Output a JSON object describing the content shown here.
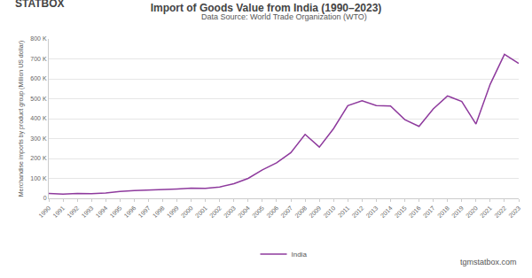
{
  "chart_data": {
    "type": "line",
    "title": "Import of Goods Value from India (1990–2023)",
    "subtitle": "Data Source: World Trade Organization (WTO)",
    "y_label": "Merchandise imports by product group (Million US dollar)",
    "annotations": [
      "STATBOX",
      "tgmstatbox.com"
    ],
    "categories": [
      "1990",
      "1991",
      "1992",
      "1993",
      "1994",
      "1995",
      "1996",
      "1997",
      "1998",
      "1999",
      "2000",
      "2001",
      "2002",
      "2003",
      "2004",
      "2005",
      "2006",
      "2007",
      "2008",
      "2009",
      "2010",
      "2011",
      "2012",
      "2013",
      "2014",
      "2015",
      "2016",
      "2017",
      "2018",
      "2019",
      "2020",
      "2021",
      "2022",
      "2023"
    ],
    "series": [
      {
        "name": "India",
        "color": "#8e3a9d",
        "values": [
          24000,
          21000,
          24000,
          23000,
          27000,
          35000,
          39000,
          41000,
          43000,
          47000,
          51000,
          50000,
          57000,
          73000,
          100000,
          143000,
          178000,
          229000,
          321000,
          257000,
          350000,
          465000,
          490000,
          466000,
          463000,
          395000,
          361000,
          449000,
          514000,
          486000,
          373000,
          573000,
          723000,
          677000
        ]
      }
    ],
    "ylim": [
      0,
      800000
    ],
    "yticks": [
      0,
      {
        "value": 100000,
        "label": "100 K"
      },
      {
        "value": 200000,
        "label": "200 K"
      },
      {
        "value": 300000,
        "label": "300 K"
      },
      {
        "value": 400000,
        "label": "400 K"
      },
      {
        "value": 500000,
        "label": "500 K"
      },
      {
        "value": 600000,
        "label": "600 K"
      },
      {
        "value": 700000,
        "label": "700 K"
      },
      {
        "value": 800000,
        "label": "800 K"
      }
    ],
    "grid": true,
    "legend": "bottom"
  }
}
